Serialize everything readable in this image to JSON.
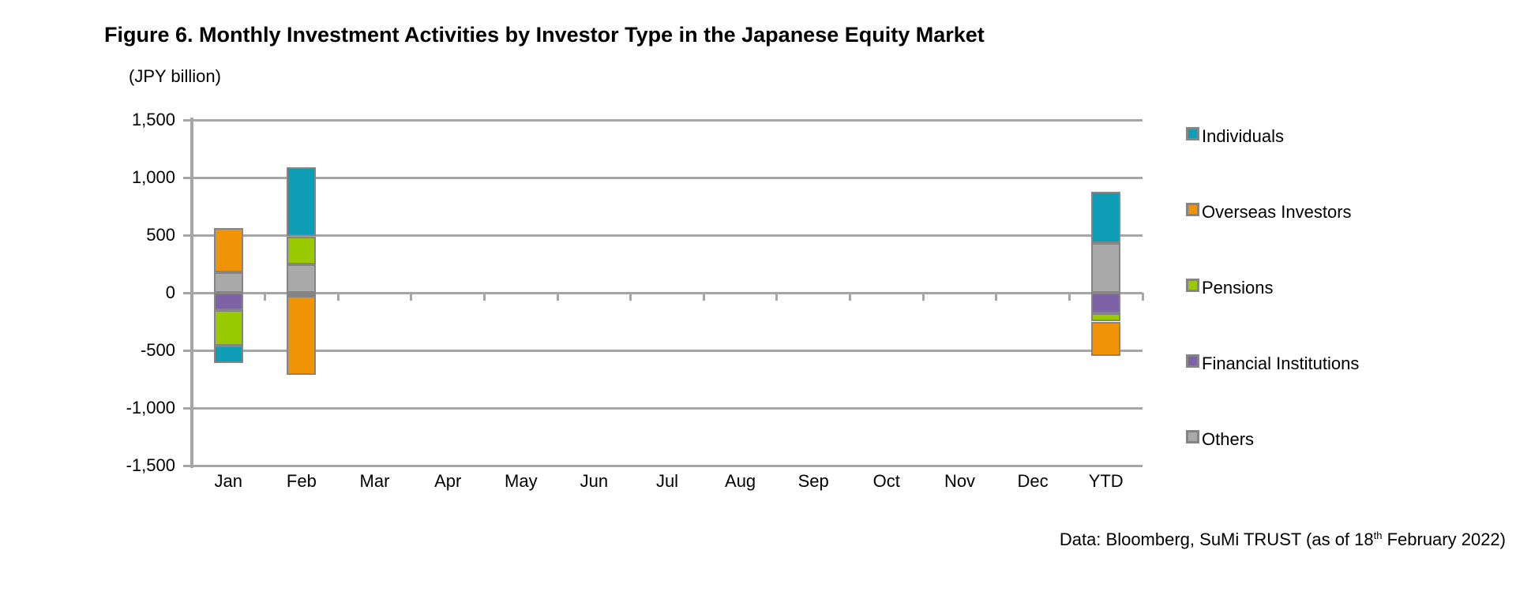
{
  "title": "Figure 6. Monthly Investment Activities by Investor Type in the Japanese Equity Market",
  "unit_label": "(JPY billion)",
  "source_note": {
    "prefix": "Data: Bloomberg, SuMi TRUST (as of 18",
    "superscript": "th",
    "suffix": " February 2022)"
  },
  "chart_data": {
    "type": "bar",
    "stacked": true,
    "unit": "JPY billion",
    "title": "Figure 6. Monthly Investment Activities by Investor Type in the Japanese Equity Market",
    "categories": [
      "Jan",
      "Feb",
      "Mar",
      "Apr",
      "May",
      "Jun",
      "Jul",
      "Aug",
      "Sep",
      "Oct",
      "Nov",
      "Dec",
      "YTD"
    ],
    "y_axis": {
      "min": -1500,
      "max": 1500,
      "step": 500,
      "tick_labels": [
        "1,500",
        "1,000",
        "500",
        "0",
        "-500",
        "-1,000",
        "-1,500"
      ],
      "tick_values": [
        1500,
        1000,
        500,
        0,
        -500,
        -1000,
        -1500
      ]
    },
    "grid": true,
    "legend_position": "right",
    "series": [
      {
        "name": "Individuals",
        "color": "#0d9db5",
        "values": [
          -150,
          600,
          null,
          null,
          null,
          null,
          null,
          null,
          null,
          null,
          null,
          null,
          450
        ]
      },
      {
        "name": "Overseas Investors",
        "color": "#f19307",
        "values": [
          385,
          -680,
          null,
          null,
          null,
          null,
          null,
          null,
          null,
          null,
          null,
          null,
          -295
        ]
      },
      {
        "name": "Pensions",
        "color": "#99ca00",
        "values": [
          -310,
          240,
          null,
          null,
          null,
          null,
          null,
          null,
          null,
          null,
          null,
          null,
          -70
        ]
      },
      {
        "name": "Financial Institutions",
        "color": "#7d63a5",
        "values": [
          -150,
          -30,
          null,
          null,
          null,
          null,
          null,
          null,
          null,
          null,
          null,
          null,
          -180
        ]
      },
      {
        "name": "Others",
        "color": "#a9a9a9",
        "values": [
          180,
          250,
          null,
          null,
          null,
          null,
          null,
          null,
          null,
          null,
          null,
          null,
          430
        ]
      }
    ],
    "stack_order_from_zero": [
      "Others",
      "Financial Institutions",
      "Pensions",
      "Overseas Investors",
      "Individuals"
    ],
    "bar_border_color": "#858585",
    "gridline_color": "#a6a6a6"
  }
}
